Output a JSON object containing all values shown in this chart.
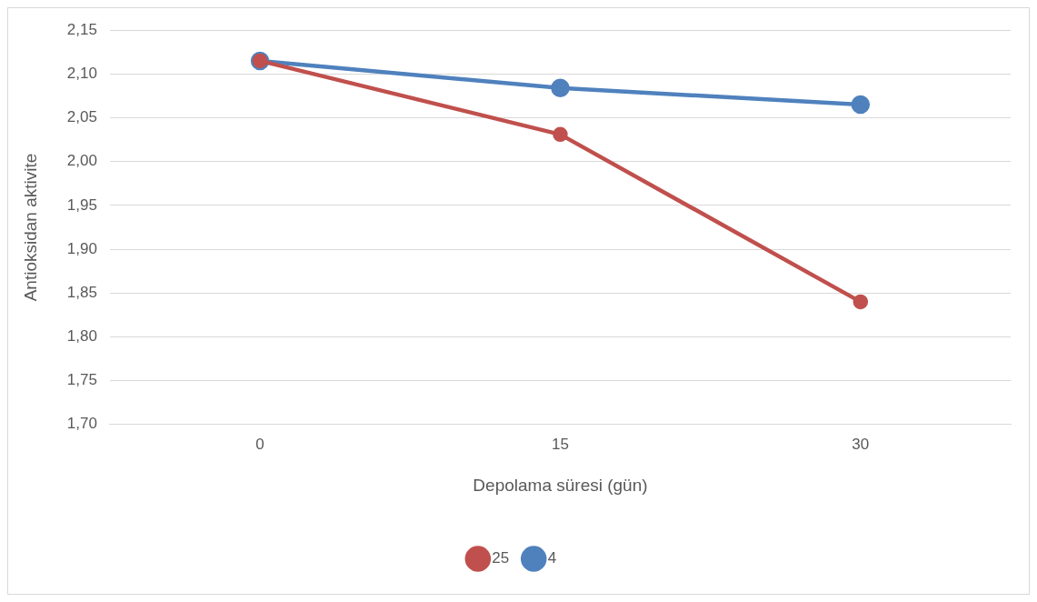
{
  "chart_data": {
    "type": "line",
    "xlabel": "Depolama süresi (gün)",
    "ylabel": "Antioksidan aktivite",
    "categories": [
      "0",
      "15",
      "30"
    ],
    "series": [
      {
        "name": "4",
        "color": "#4f81bd",
        "values": [
          2.115,
          2.084,
          2.065
        ]
      },
      {
        "name": "25",
        "color": "#c0504d",
        "values": [
          2.115,
          2.031,
          1.84
        ]
      }
    ],
    "ylim": [
      1.7,
      2.15
    ],
    "yticks": [
      {
        "value": 1.7,
        "label": "1,70"
      },
      {
        "value": 1.75,
        "label": "1,75"
      },
      {
        "value": 1.8,
        "label": "1,80"
      },
      {
        "value": 1.85,
        "label": "1,85"
      },
      {
        "value": 1.9,
        "label": "1,90"
      },
      {
        "value": 1.95,
        "label": "1,95"
      },
      {
        "value": 2.0,
        "label": "2,00"
      },
      {
        "value": 2.05,
        "label": "2,05"
      },
      {
        "value": 2.1,
        "label": "2,10"
      },
      {
        "value": 2.15,
        "label": "2,15"
      }
    ],
    "grid": "y",
    "legend": "bottom",
    "marker": "circle",
    "line_style": "solid"
  }
}
